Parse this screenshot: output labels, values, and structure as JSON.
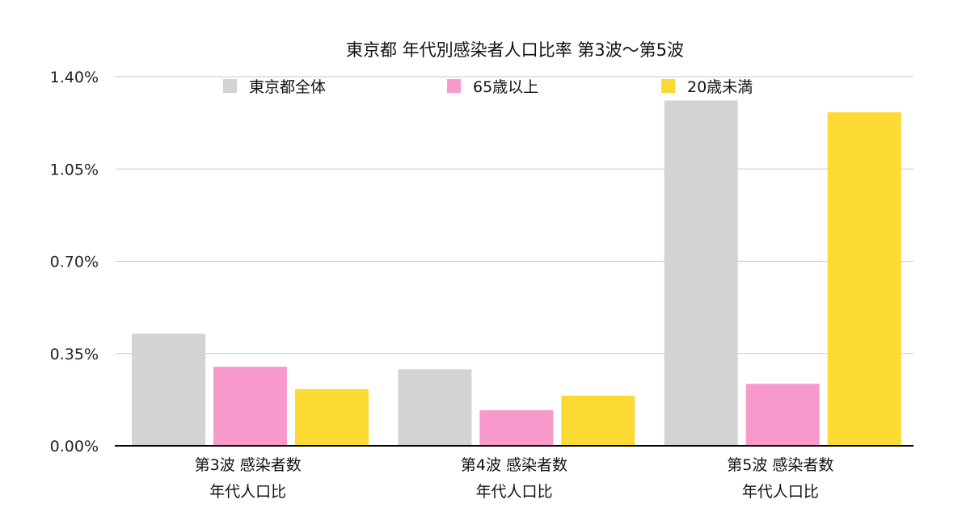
{
  "chart_data": {
    "type": "bar",
    "title": "東京都 年代別感染者人口比率 第3波〜第5波",
    "xlabel": "",
    "ylabel": "",
    "ylim": [
      0,
      1.4
    ],
    "yticks": [
      "0.00%",
      "0.35%",
      "0.70%",
      "1.05%",
      "1.40%"
    ],
    "grid": true,
    "legend_position": "top",
    "categories": [
      [
        "第3波 感染者数",
        "年代人口比"
      ],
      [
        "第4波 感染者数",
        "年代人口比"
      ],
      [
        "第5波 感染者数",
        "年代人口比"
      ]
    ],
    "series": [
      {
        "name": "東京都全体",
        "color": "#d3d3d3",
        "values": [
          0.425,
          0.29,
          1.31
        ]
      },
      {
        "name": "65歳以上",
        "color": "#f899cb",
        "values": [
          0.3,
          0.135,
          0.235
        ]
      },
      {
        "name": "20歳未満",
        "color": "#fdd933",
        "values": [
          0.215,
          0.19,
          1.265
        ]
      }
    ]
  }
}
